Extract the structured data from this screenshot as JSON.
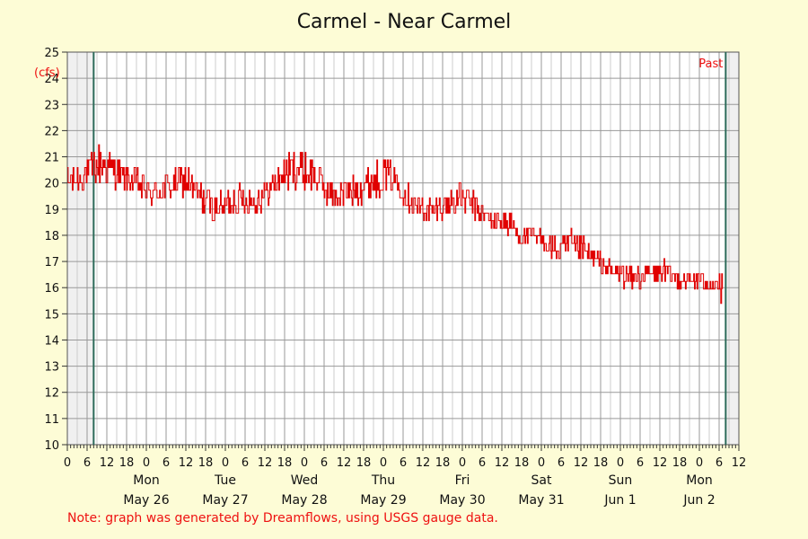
{
  "chart_data": {
    "type": "line",
    "title": "Carmel - Near Carmel",
    "ylabel": "(cfs)",
    "xlabel": "",
    "ylim": [
      10,
      25
    ],
    "y_ticks": [
      "10",
      "11",
      "12",
      "13",
      "14",
      "15",
      "16",
      "17",
      "18",
      "19",
      "20",
      "21",
      "22",
      "23",
      "24",
      "25"
    ],
    "x_hour_labels": [
      "0",
      "6",
      "12",
      "18"
    ],
    "days": [
      {
        "weekday": "Mon",
        "date": "May 26"
      },
      {
        "weekday": "Tue",
        "date": "May 27"
      },
      {
        "weekday": "Wed",
        "date": "May 28"
      },
      {
        "weekday": "Thu",
        "date": "May 29"
      },
      {
        "weekday": "Fri",
        "date": "May 30"
      },
      {
        "weekday": "Sat",
        "date": "May 31"
      },
      {
        "weekday": "Sun",
        "date": "Jun 1"
      },
      {
        "weekday": "Mon",
        "date": "Jun 2"
      }
    ],
    "series": [
      {
        "color": "#e00000",
        "x_hours_from_May25_midnight": [
          0,
          3,
          6,
          8,
          10,
          12,
          15,
          18,
          21,
          24,
          27,
          30,
          33,
          36,
          39,
          42,
          45,
          48,
          51,
          54,
          57,
          60,
          63,
          66,
          69,
          72,
          75,
          78,
          81,
          84,
          87,
          90,
          93,
          96,
          99,
          102,
          105,
          108,
          111,
          114,
          117,
          120,
          123,
          126,
          129,
          132,
          135,
          138,
          141,
          144,
          147,
          150,
          153,
          156,
          159,
          162,
          165,
          168,
          171,
          174,
          177,
          180,
          183,
          186,
          189,
          192,
          195,
          198,
          201,
          204
        ],
        "values": [
          20.0,
          20.2,
          20.3,
          20.6,
          20.7,
          20.6,
          20.4,
          20.2,
          20.0,
          19.7,
          19.6,
          19.8,
          20.0,
          20.1,
          19.6,
          19.3,
          19.0,
          19.2,
          19.4,
          19.4,
          19.3,
          19.6,
          20.0,
          20.4,
          20.6,
          20.5,
          20.3,
          19.8,
          19.5,
          19.6,
          19.7,
          19.9,
          20.1,
          20.3,
          20.2,
          19.7,
          19.3,
          19.0,
          18.9,
          19.1,
          19.3,
          19.4,
          19.2,
          18.8,
          18.5,
          18.6,
          18.3,
          18.0,
          17.9,
          17.8,
          17.5,
          17.4,
          17.6,
          17.5,
          17.2,
          16.9,
          16.6,
          16.5,
          16.4,
          16.4,
          16.5,
          16.6,
          16.5,
          16.4,
          16.3,
          16.3,
          16.2,
          16.2,
          16.2,
          16.2
        ],
        "noise_amplitude": [
          0.6,
          0.6,
          0.6,
          0.7,
          0.8,
          0.7,
          0.6,
          0.5,
          0.6,
          0.5,
          0.5,
          0.6,
          0.6,
          0.6,
          0.6,
          0.6,
          0.5,
          0.5,
          0.6,
          0.6,
          0.6,
          0.5,
          0.6,
          0.7,
          0.8,
          0.8,
          0.7,
          0.6,
          0.5,
          0.5,
          0.5,
          0.6,
          0.7,
          0.7,
          0.6,
          0.6,
          0.5,
          0.5,
          0.5,
          0.5,
          0.6,
          0.6,
          0.5,
          0.4,
          0.4,
          0.5,
          0.5,
          0.4,
          0.4,
          0.4,
          0.5,
          0.5,
          0.6,
          0.5,
          0.4,
          0.4,
          0.4,
          0.4,
          0.4,
          0.4,
          0.4,
          0.5,
          0.4,
          0.4,
          0.4,
          0.4,
          0.4,
          0.5,
          0.5,
          0.4
        ],
        "end_hour": 199,
        "end_min_value": 15.4
      }
    ],
    "start_marker_hour": 8,
    "past_marker_hour": 200,
    "x_hours_range": [
      0,
      204
    ],
    "grid": true,
    "past_label": "Past"
  },
  "note": "Note: graph was generated by Dreamflows, using USGS gauge data.",
  "colors": {
    "background": "#fdfcd6",
    "plot_area": "#ffffff",
    "shaded_area": "#f0f0f0",
    "grid_major": "#999999",
    "grid_minor": "#cccccc",
    "marker_line": "#2d6b5a",
    "note_text": "#ee1111"
  }
}
